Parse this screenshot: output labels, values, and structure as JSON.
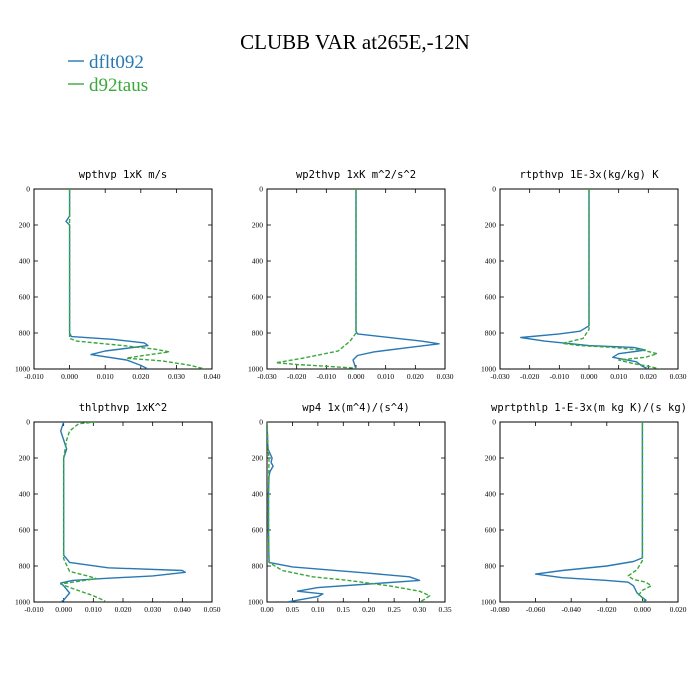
{
  "title": "CLUBB VAR at265E,-12N",
  "legend": [
    {
      "name": "dflt092",
      "color": "#2878b4",
      "dash": "solid"
    },
    {
      "name": "d92taus",
      "color": "#3aa73a",
      "dash": "dashed"
    }
  ],
  "chart_data": [
    {
      "type": "line",
      "title": "wpthvp  1xK m/s",
      "xlim": [
        -0.01,
        0.04
      ],
      "ylim": [
        1000,
        0
      ],
      "xticks": [
        "-0.010",
        "0.000",
        "0.010",
        "0.020",
        "0.030",
        "0.040"
      ],
      "yticks": [
        "0",
        "200",
        "400",
        "600",
        "800",
        "1000"
      ],
      "series": [
        {
          "name": "dflt092",
          "points": [
            [
              0.0,
              0
            ],
            [
              0.0,
              150
            ],
            [
              -0.001,
              180
            ],
            [
              0.0,
              200
            ],
            [
              0.0,
              250
            ],
            [
              0.0,
              400
            ],
            [
              0.0,
              600
            ],
            [
              0.0,
              800
            ],
            [
              0.0005,
              820
            ],
            [
              0.012,
              835
            ],
            [
              0.021,
              855
            ],
            [
              0.022,
              870
            ],
            [
              0.01,
              900
            ],
            [
              0.006,
              920
            ],
            [
              0.016,
              950
            ],
            [
              0.02,
              980
            ],
            [
              0.022,
              1000
            ]
          ]
        },
        {
          "name": "d92taus",
          "points": [
            [
              0.0,
              0
            ],
            [
              0.0,
              400
            ],
            [
              0.0,
              600
            ],
            [
              0.0,
              800
            ],
            [
              0.0,
              830
            ],
            [
              0.002,
              845
            ],
            [
              0.015,
              870
            ],
            [
              0.024,
              890
            ],
            [
              0.028,
              905
            ],
            [
              0.019,
              930
            ],
            [
              0.016,
              940
            ],
            [
              0.026,
              955
            ],
            [
              0.034,
              980
            ],
            [
              0.038,
              1000
            ]
          ]
        }
      ]
    },
    {
      "type": "line",
      "title": "wp2thvp  1xK m^2/s^2",
      "xlim": [
        -0.03,
        0.03
      ],
      "ylim": [
        1000,
        0
      ],
      "xticks": [
        "-0.030",
        "-0.020",
        "-0.010",
        "0.000",
        "0.010",
        "0.020",
        "0.030"
      ],
      "yticks": [
        "0",
        "200",
        "400",
        "600",
        "800",
        "1000"
      ],
      "series": [
        {
          "name": "dflt092",
          "points": [
            [
              0.0,
              0
            ],
            [
              0.0,
              400
            ],
            [
              0.0,
              600
            ],
            [
              0.0,
              790
            ],
            [
              0.0005,
              805
            ],
            [
              0.014,
              830
            ],
            [
              0.022,
              845
            ],
            [
              0.028,
              860
            ],
            [
              0.018,
              880
            ],
            [
              0.006,
              905
            ],
            [
              0.0005,
              925
            ],
            [
              -0.001,
              950
            ],
            [
              0.0,
              1000
            ]
          ]
        },
        {
          "name": "d92taus",
          "points": [
            [
              0.0,
              0
            ],
            [
              0.0,
              400
            ],
            [
              0.0,
              600
            ],
            [
              0.0,
              800
            ],
            [
              -0.002,
              845
            ],
            [
              -0.006,
              900
            ],
            [
              -0.018,
              940
            ],
            [
              -0.025,
              960
            ],
            [
              -0.027,
              965
            ],
            [
              -0.02,
              975
            ],
            [
              -0.01,
              985
            ],
            [
              0.0,
              995
            ]
          ]
        }
      ]
    },
    {
      "type": "line",
      "title": "rtpthvp  1E-3x(kg/kg) K",
      "xlim": [
        -0.03,
        0.03
      ],
      "ylim": [
        1000,
        0
      ],
      "xticks": [
        "-0.030",
        "-0.020",
        "-0.010",
        "0.000",
        "0.010",
        "0.020",
        "0.030"
      ],
      "yticks": [
        "0",
        "200",
        "400",
        "600",
        "800",
        "1000"
      ],
      "series": [
        {
          "name": "dflt092",
          "points": [
            [
              0.0,
              0
            ],
            [
              0.0,
              400
            ],
            [
              0.0,
              600
            ],
            [
              0.0,
              760
            ],
            [
              -0.003,
              790
            ],
            [
              -0.01,
              805
            ],
            [
              -0.023,
              825
            ],
            [
              -0.015,
              845
            ],
            [
              0.0,
              870
            ],
            [
              0.015,
              880
            ],
            [
              0.019,
              895
            ],
            [
              0.01,
              915
            ],
            [
              0.008,
              935
            ],
            [
              0.016,
              960
            ],
            [
              0.018,
              985
            ],
            [
              0.02,
              1000
            ]
          ]
        },
        {
          "name": "d92taus",
          "points": [
            [
              0.0,
              0
            ],
            [
              0.0,
              400
            ],
            [
              0.0,
              600
            ],
            [
              0.0,
              780
            ],
            [
              -0.002,
              830
            ],
            [
              -0.009,
              858
            ],
            [
              -0.003,
              870
            ],
            [
              0.008,
              880
            ],
            [
              0.018,
              895
            ],
            [
              0.023,
              915
            ],
            [
              0.019,
              935
            ],
            [
              0.01,
              950
            ],
            [
              0.015,
              970
            ],
            [
              0.02,
              985
            ],
            [
              0.024,
              1000
            ]
          ]
        }
      ]
    },
    {
      "type": "line",
      "title": "thlpthvp  1xK^2",
      "xlim": [
        -0.01,
        0.05
      ],
      "ylim": [
        1000,
        0
      ],
      "xticks": [
        "-0.010",
        "0.000",
        "0.010",
        "0.020",
        "0.030",
        "0.040",
        "0.050"
      ],
      "yticks": [
        "0",
        "200",
        "400",
        "600",
        "800",
        "1000"
      ],
      "series": [
        {
          "name": "dflt092",
          "points": [
            [
              0.0,
              0
            ],
            [
              -0.001,
              50
            ],
            [
              0.0,
              100
            ],
            [
              0.001,
              150
            ],
            [
              0.0,
              200
            ],
            [
              0.0,
              400
            ],
            [
              0.0,
              600
            ],
            [
              0.0,
              740
            ],
            [
              0.002,
              780
            ],
            [
              0.015,
              810
            ],
            [
              0.04,
              825
            ],
            [
              0.041,
              835
            ],
            [
              0.03,
              855
            ],
            [
              0.013,
              870
            ],
            [
              0.003,
              880
            ],
            [
              -0.001,
              895
            ],
            [
              0.0,
              910
            ],
            [
              0.002,
              950
            ],
            [
              0.0,
              990
            ],
            [
              -0.001,
              1000
            ]
          ]
        },
        {
          "name": "d92taus",
          "points": [
            [
              0.011,
              0
            ],
            [
              0.005,
              10
            ],
            [
              0.002,
              50
            ],
            [
              0.001,
              100
            ],
            [
              0.0,
              200
            ],
            [
              0.0,
              400
            ],
            [
              0.0,
              600
            ],
            [
              0.0,
              760
            ],
            [
              0.002,
              830
            ],
            [
              0.008,
              855
            ],
            [
              0.011,
              870
            ],
            [
              0.005,
              885
            ],
            [
              -0.001,
              900
            ],
            [
              0.003,
              925
            ],
            [
              0.01,
              965
            ],
            [
              0.014,
              995
            ]
          ]
        }
      ]
    },
    {
      "type": "line",
      "title": "wp4  1x(m^4)/(s^4)",
      "xlim": [
        0.0,
        0.35
      ],
      "ylim": [
        1000,
        0
      ],
      "xticks": [
        "0.00",
        "0.05",
        "0.10",
        "0.15",
        "0.20",
        "0.25",
        "0.30",
        "0.35"
      ],
      "yticks": [
        "0",
        "200",
        "400",
        "600",
        "800",
        "1000"
      ],
      "series": [
        {
          "name": "dflt092",
          "points": [
            [
              0.0,
              0
            ],
            [
              0.002,
              150
            ],
            [
              0.01,
              200
            ],
            [
              0.008,
              225
            ],
            [
              0.012,
              245
            ],
            [
              0.006,
              275
            ],
            [
              0.004,
              300
            ],
            [
              0.003,
              400
            ],
            [
              0.003,
              600
            ],
            [
              0.004,
              780
            ],
            [
              0.05,
              805
            ],
            [
              0.2,
              840
            ],
            [
              0.28,
              860
            ],
            [
              0.3,
              880
            ],
            [
              0.2,
              900
            ],
            [
              0.1,
              920
            ],
            [
              0.06,
              940
            ],
            [
              0.11,
              955
            ],
            [
              0.1,
              970
            ],
            [
              0.06,
              990
            ],
            [
              0.04,
              1000
            ]
          ]
        },
        {
          "name": "d92taus",
          "points": [
            [
              0.0,
              0
            ],
            [
              0.002,
              150
            ],
            [
              0.004,
              200
            ],
            [
              0.003,
              400
            ],
            [
              0.003,
              600
            ],
            [
              0.004,
              780
            ],
            [
              0.03,
              825
            ],
            [
              0.09,
              860
            ],
            [
              0.16,
              880
            ],
            [
              0.24,
              910
            ],
            [
              0.3,
              940
            ],
            [
              0.32,
              965
            ],
            [
              0.31,
              985
            ],
            [
              0.3,
              1000
            ]
          ]
        }
      ]
    },
    {
      "type": "line",
      "title": "wprtpthlp  1-E-3x(m kg K)/(s kg)",
      "xlim": [
        -0.08,
        0.02
      ],
      "ylim": [
        1000,
        0
      ],
      "xticks": [
        "-0.080",
        "-0.060",
        "-0.040",
        "-0.020",
        "0.000",
        "0.020"
      ],
      "yticks": [
        "0",
        "200",
        "400",
        "600",
        "800",
        "1000"
      ],
      "series": [
        {
          "name": "dflt092",
          "points": [
            [
              0.0,
              0
            ],
            [
              0.0,
              400
            ],
            [
              0.0,
              600
            ],
            [
              0.0,
              755
            ],
            [
              -0.005,
              775
            ],
            [
              -0.02,
              800
            ],
            [
              -0.045,
              825
            ],
            [
              -0.06,
              845
            ],
            [
              -0.045,
              865
            ],
            [
              -0.02,
              880
            ],
            [
              -0.008,
              890
            ],
            [
              -0.005,
              910
            ],
            [
              -0.003,
              950
            ],
            [
              0.0,
              975
            ],
            [
              0.002,
              990
            ],
            [
              0.0,
              1000
            ]
          ]
        },
        {
          "name": "d92taus",
          "points": [
            [
              0.0,
              0
            ],
            [
              0.0,
              400
            ],
            [
              0.0,
              600
            ],
            [
              0.0,
              770
            ],
            [
              -0.003,
              820
            ],
            [
              -0.008,
              855
            ],
            [
              -0.005,
              875
            ],
            [
              0.002,
              890
            ],
            [
              0.005,
              910
            ],
            [
              0.0,
              935
            ],
            [
              -0.002,
              960
            ],
            [
              0.001,
              985
            ],
            [
              0.0,
              1000
            ]
          ]
        }
      ]
    }
  ]
}
